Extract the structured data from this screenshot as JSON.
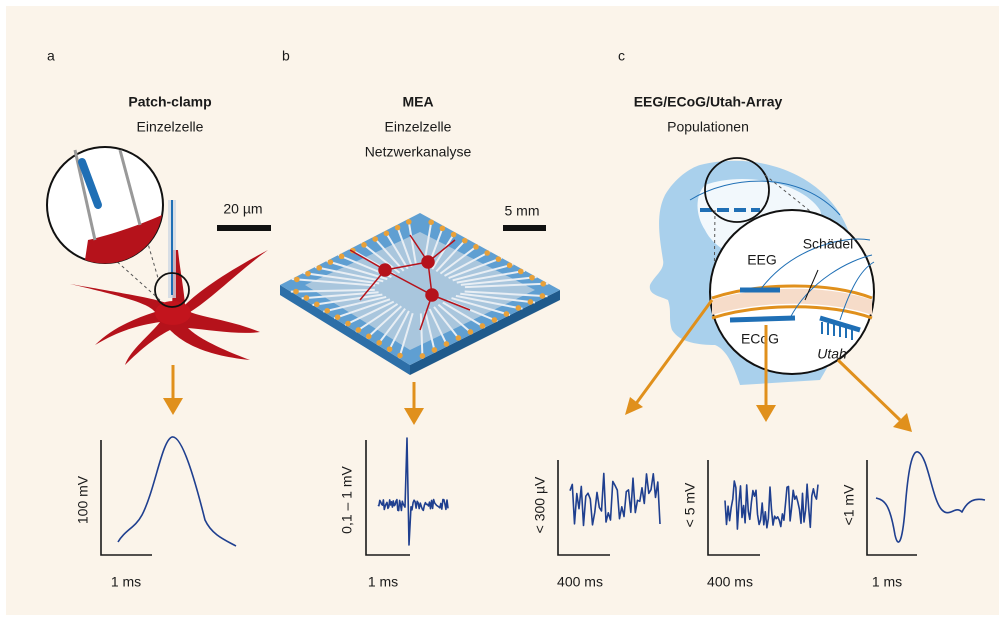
{
  "panels": [
    {
      "letter": "a",
      "title": "Patch-clamp",
      "subtitle": [
        "Einzelzelle"
      ],
      "scale_bar": "20 µm",
      "traces": [
        {
          "y_label": "100 mV",
          "x_label": "1 ms"
        }
      ]
    },
    {
      "letter": "b",
      "title": "MEA",
      "subtitle": [
        "Einzelzelle",
        "Netzwerkanalyse"
      ],
      "scale_bar": "5 mm",
      "traces": [
        {
          "y_label": "0,1 – 1 mV",
          "x_label": "1 ms"
        }
      ]
    },
    {
      "letter": "c",
      "title": "EEG/ECoG/Utah-Array",
      "subtitle": [
        "Populationen"
      ],
      "inset_labels": [
        "EEG",
        "Schädel",
        "ECoG",
        "Utah"
      ],
      "traces": [
        {
          "y_label": "< 300 µV",
          "x_label": "400 ms"
        },
        {
          "y_label": "< 5 mV",
          "x_label": "400 ms"
        },
        {
          "y_label": "<1 mV",
          "x_label": "1 ms"
        }
      ]
    }
  ]
}
